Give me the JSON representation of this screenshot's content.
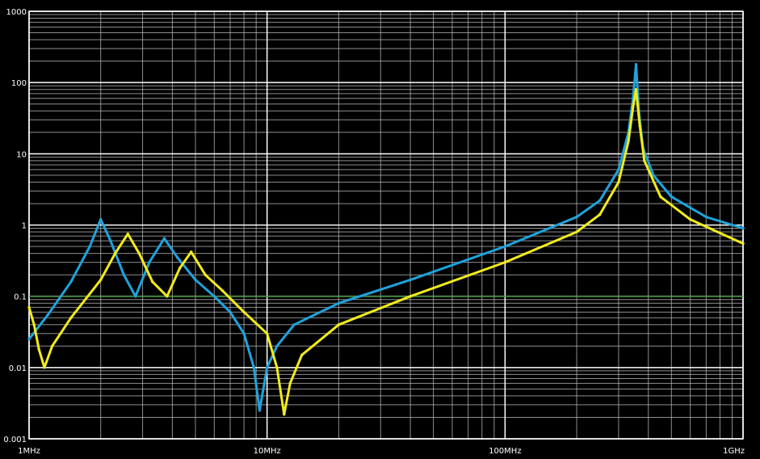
{
  "chart_data": {
    "type": "line",
    "title": "",
    "xlabel": "",
    "ylabel": "",
    "x_scale": "log",
    "y_scale": "log",
    "xlim": [
      1000000,
      1000000000
    ],
    "ylim": [
      0.001,
      1000
    ],
    "grid": true,
    "x_tick_values": [
      1000000,
      10000000,
      100000000,
      1000000000
    ],
    "x_tick_labels": [
      "1MHz",
      "10MHz",
      "100MHz",
      "1GHz"
    ],
    "y_tick_values": [
      1000,
      100,
      10,
      1,
      0.1,
      0.01,
      0.001
    ],
    "y_tick_labels": [
      "1000",
      "100",
      "10",
      "1",
      "0.1",
      "0.01",
      "0.001"
    ],
    "reference_line": {
      "y": 0.1,
      "color": "#1f8a1f"
    },
    "colors": {
      "background": "#000000",
      "grid_major": "#ffffff",
      "grid_minor": "#bdbdbd",
      "series_1": "#1fa3dc",
      "series_2": "#f2ec1a"
    },
    "series": [
      {
        "color": "#1fa3dc",
        "points": [
          [
            1000000,
            0.025
          ],
          [
            1200000,
            0.055
          ],
          [
            1500000,
            0.16
          ],
          [
            1800000,
            0.5
          ],
          [
            2000000,
            1.2
          ],
          [
            2200000,
            0.6
          ],
          [
            2500000,
            0.2
          ],
          [
            2800000,
            0.1
          ],
          [
            3200000,
            0.3
          ],
          [
            3700000,
            0.65
          ],
          [
            4200000,
            0.35
          ],
          [
            5000000,
            0.17
          ],
          [
            6000000,
            0.1
          ],
          [
            7000000,
            0.06
          ],
          [
            8000000,
            0.03
          ],
          [
            8800000,
            0.01
          ],
          [
            9300000,
            0.0025
          ],
          [
            10000000,
            0.01
          ],
          [
            11000000,
            0.02
          ],
          [
            13000000,
            0.04
          ],
          [
            20000000,
            0.08
          ],
          [
            40000000,
            0.17
          ],
          [
            100000000,
            0.5
          ],
          [
            200000000,
            1.3
          ],
          [
            250000000,
            2.2
          ],
          [
            300000000,
            6
          ],
          [
            330000000,
            20
          ],
          [
            345000000,
            60
          ],
          [
            355000000,
            180
          ],
          [
            365000000,
            40
          ],
          [
            380000000,
            12
          ],
          [
            420000000,
            5
          ],
          [
            500000000,
            2.5
          ],
          [
            700000000,
            1.3
          ],
          [
            1000000000,
            0.9
          ]
        ]
      },
      {
        "color": "#f2ec1a",
        "points": [
          [
            1000000,
            0.07
          ],
          [
            1050000,
            0.04
          ],
          [
            1100000,
            0.018
          ],
          [
            1160000,
            0.01
          ],
          [
            1250000,
            0.02
          ],
          [
            1500000,
            0.05
          ],
          [
            2000000,
            0.17
          ],
          [
            2300000,
            0.4
          ],
          [
            2600000,
            0.75
          ],
          [
            2900000,
            0.4
          ],
          [
            3300000,
            0.16
          ],
          [
            3800000,
            0.1
          ],
          [
            4300000,
            0.25
          ],
          [
            4800000,
            0.42
          ],
          [
            5500000,
            0.2
          ],
          [
            6500000,
            0.12
          ],
          [
            8000000,
            0.06
          ],
          [
            10000000,
            0.03
          ],
          [
            11000000,
            0.01
          ],
          [
            11800000,
            0.0022
          ],
          [
            12500000,
            0.006
          ],
          [
            14000000,
            0.015
          ],
          [
            20000000,
            0.04
          ],
          [
            40000000,
            0.1
          ],
          [
            100000000,
            0.3
          ],
          [
            200000000,
            0.8
          ],
          [
            250000000,
            1.4
          ],
          [
            300000000,
            4
          ],
          [
            330000000,
            15
          ],
          [
            345000000,
            45
          ],
          [
            355000000,
            80
          ],
          [
            368000000,
            25
          ],
          [
            385000000,
            8
          ],
          [
            450000000,
            2.5
          ],
          [
            600000000,
            1.2
          ],
          [
            1000000000,
            0.55
          ]
        ]
      }
    ]
  }
}
